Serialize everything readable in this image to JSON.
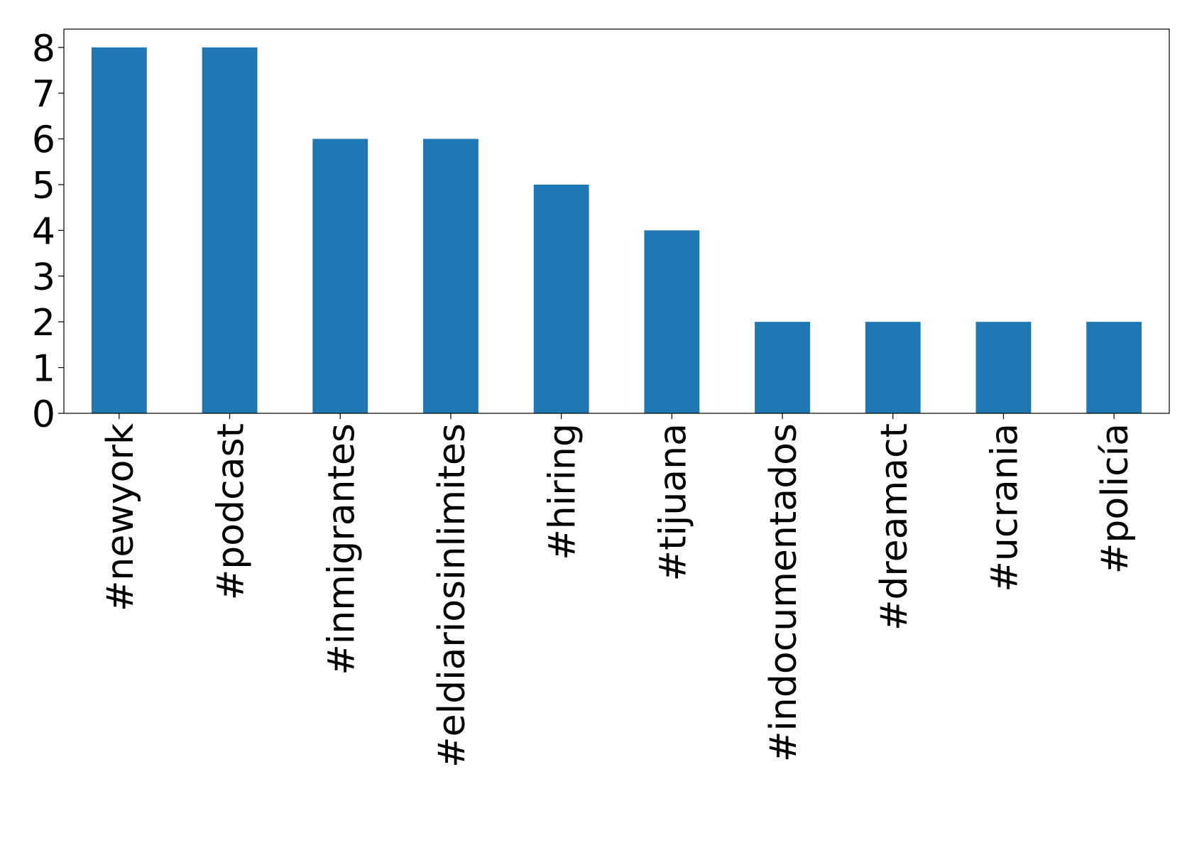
{
  "chart_data": {
    "type": "bar",
    "categories": [
      "#newyork",
      "#podcast",
      "#inmigrantes",
      "#eldiariosinlimites",
      "#hiring",
      "#tijuana",
      "#indocumentados",
      "#dreamact",
      "#ucrania",
      "#policía"
    ],
    "values": [
      8,
      8,
      6,
      6,
      5,
      4,
      2,
      2,
      2,
      2
    ],
    "color": "#1f77b4",
    "ylim": [
      0,
      8.4
    ],
    "yticks": [
      0,
      1,
      2,
      3,
      4,
      5,
      6,
      7,
      8
    ],
    "grid": false
  }
}
